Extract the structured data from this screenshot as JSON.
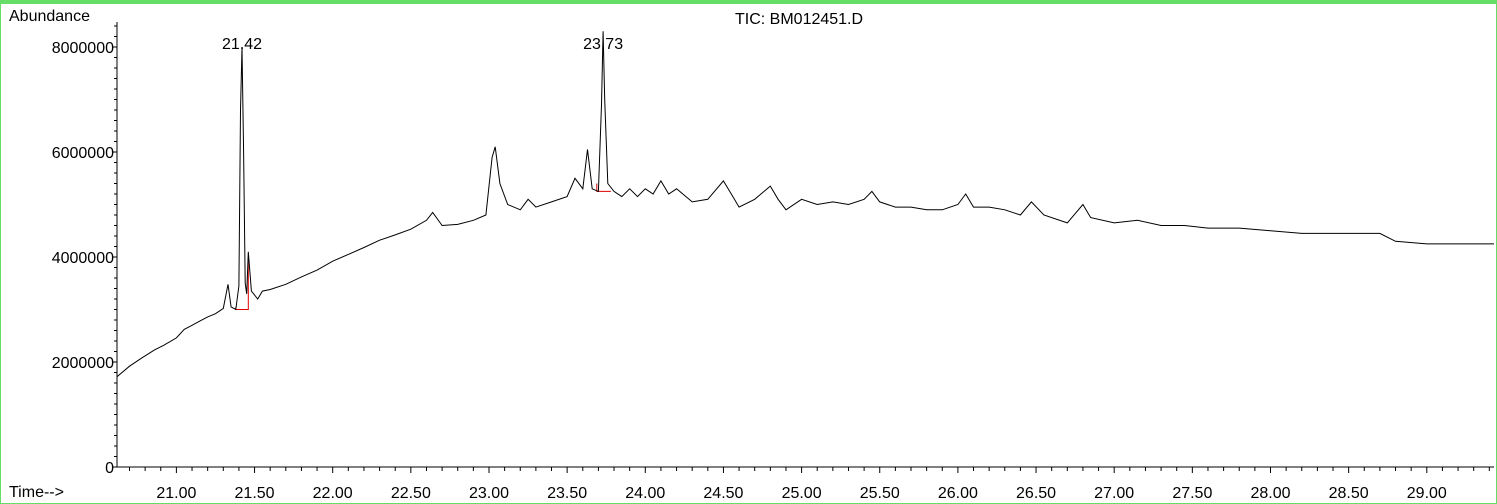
{
  "chart_data": {
    "type": "line",
    "title": "TIC: BM012451.D",
    "ylabel": "Abundance",
    "xlabel": "Time-->",
    "xlim": [
      20.62,
      29.43
    ],
    "ylim": [
      0,
      8400000
    ],
    "x_ticks": [
      "21.00",
      "21.50",
      "22.00",
      "22.50",
      "23.00",
      "23.50",
      "24.00",
      "24.50",
      "25.00",
      "25.50",
      "26.00",
      "26.50",
      "27.00",
      "27.50",
      "28.00",
      "28.50",
      "29.00"
    ],
    "y_ticks": [
      "0",
      "2000000",
      "4000000",
      "6000000",
      "8000000"
    ],
    "peak_labels": [
      "21.42",
      "23.73"
    ],
    "colors": {
      "trace": "#000000",
      "integration": "#dd0000",
      "frame": "#66dd66"
    },
    "series": [
      {
        "points": [
          [
            20.62,
            1720000
          ],
          [
            20.7,
            1920000
          ],
          [
            20.78,
            2080000
          ],
          [
            20.86,
            2230000
          ],
          [
            20.92,
            2320000
          ],
          [
            21.0,
            2460000
          ],
          [
            21.05,
            2620000
          ],
          [
            21.1,
            2700000
          ],
          [
            21.15,
            2780000
          ],
          [
            21.2,
            2860000
          ],
          [
            21.25,
            2920000
          ],
          [
            21.3,
            3020000
          ],
          [
            21.33,
            3480000
          ],
          [
            21.35,
            3050000
          ],
          [
            21.38,
            3000000
          ],
          [
            21.4,
            3450000
          ],
          [
            21.41,
            6800000
          ],
          [
            21.42,
            8000000
          ],
          [
            21.43,
            6000000
          ],
          [
            21.44,
            3500000
          ],
          [
            21.45,
            3300000
          ],
          [
            21.46,
            4100000
          ],
          [
            21.48,
            3350000
          ],
          [
            21.52,
            3200000
          ],
          [
            21.55,
            3350000
          ],
          [
            21.6,
            3380000
          ],
          [
            21.7,
            3480000
          ],
          [
            21.8,
            3620000
          ],
          [
            21.9,
            3750000
          ],
          [
            22.0,
            3920000
          ],
          [
            22.1,
            4050000
          ],
          [
            22.2,
            4180000
          ],
          [
            22.3,
            4320000
          ],
          [
            22.4,
            4420000
          ],
          [
            22.5,
            4530000
          ],
          [
            22.6,
            4700000
          ],
          [
            22.64,
            4850000
          ],
          [
            22.7,
            4600000
          ],
          [
            22.8,
            4620000
          ],
          [
            22.9,
            4700000
          ],
          [
            22.98,
            4800000
          ],
          [
            23.02,
            5900000
          ],
          [
            23.04,
            6100000
          ],
          [
            23.07,
            5400000
          ],
          [
            23.12,
            5000000
          ],
          [
            23.2,
            4900000
          ],
          [
            23.25,
            5100000
          ],
          [
            23.3,
            4950000
          ],
          [
            23.4,
            5050000
          ],
          [
            23.5,
            5150000
          ],
          [
            23.55,
            5500000
          ],
          [
            23.6,
            5300000
          ],
          [
            23.63,
            6050000
          ],
          [
            23.66,
            5300000
          ],
          [
            23.7,
            5250000
          ],
          [
            23.72,
            6900000
          ],
          [
            23.73,
            8300000
          ],
          [
            23.74,
            7000000
          ],
          [
            23.76,
            5400000
          ],
          [
            23.8,
            5250000
          ],
          [
            23.85,
            5150000
          ],
          [
            23.9,
            5300000
          ],
          [
            23.95,
            5150000
          ],
          [
            24.0,
            5300000
          ],
          [
            24.05,
            5200000
          ],
          [
            24.1,
            5450000
          ],
          [
            24.15,
            5200000
          ],
          [
            24.2,
            5300000
          ],
          [
            24.3,
            5050000
          ],
          [
            24.4,
            5100000
          ],
          [
            24.5,
            5450000
          ],
          [
            24.55,
            5200000
          ],
          [
            24.6,
            4950000
          ],
          [
            24.7,
            5100000
          ],
          [
            24.8,
            5350000
          ],
          [
            24.85,
            5100000
          ],
          [
            24.9,
            4900000
          ],
          [
            25.0,
            5100000
          ],
          [
            25.1,
            5000000
          ],
          [
            25.2,
            5050000
          ],
          [
            25.3,
            5000000
          ],
          [
            25.4,
            5100000
          ],
          [
            25.45,
            5250000
          ],
          [
            25.5,
            5050000
          ],
          [
            25.6,
            4950000
          ],
          [
            25.7,
            4950000
          ],
          [
            25.8,
            4900000
          ],
          [
            25.9,
            4900000
          ],
          [
            26.0,
            5000000
          ],
          [
            26.05,
            5200000
          ],
          [
            26.1,
            4950000
          ],
          [
            26.2,
            4950000
          ],
          [
            26.3,
            4900000
          ],
          [
            26.4,
            4800000
          ],
          [
            26.47,
            5050000
          ],
          [
            26.55,
            4800000
          ],
          [
            26.7,
            4650000
          ],
          [
            26.8,
            5000000
          ],
          [
            26.85,
            4750000
          ],
          [
            27.0,
            4650000
          ],
          [
            27.15,
            4700000
          ],
          [
            27.3,
            4600000
          ],
          [
            27.45,
            4600000
          ],
          [
            27.6,
            4550000
          ],
          [
            27.8,
            4550000
          ],
          [
            28.0,
            4500000
          ],
          [
            28.2,
            4450000
          ],
          [
            28.4,
            4450000
          ],
          [
            28.55,
            4450000
          ],
          [
            28.7,
            4450000
          ],
          [
            28.8,
            4300000
          ],
          [
            29.0,
            4250000
          ],
          [
            29.2,
            4250000
          ],
          [
            29.43,
            4250000
          ]
        ]
      }
    ],
    "integration_baselines": [
      [
        [
          21.38,
          3050000
        ],
        [
          21.38,
          3000000
        ],
        [
          21.46,
          3000000
        ],
        [
          21.46,
          4000000
        ]
      ],
      [
        [
          23.69,
          5400000
        ],
        [
          23.69,
          5250000
        ],
        [
          23.78,
          5250000
        ]
      ]
    ]
  }
}
